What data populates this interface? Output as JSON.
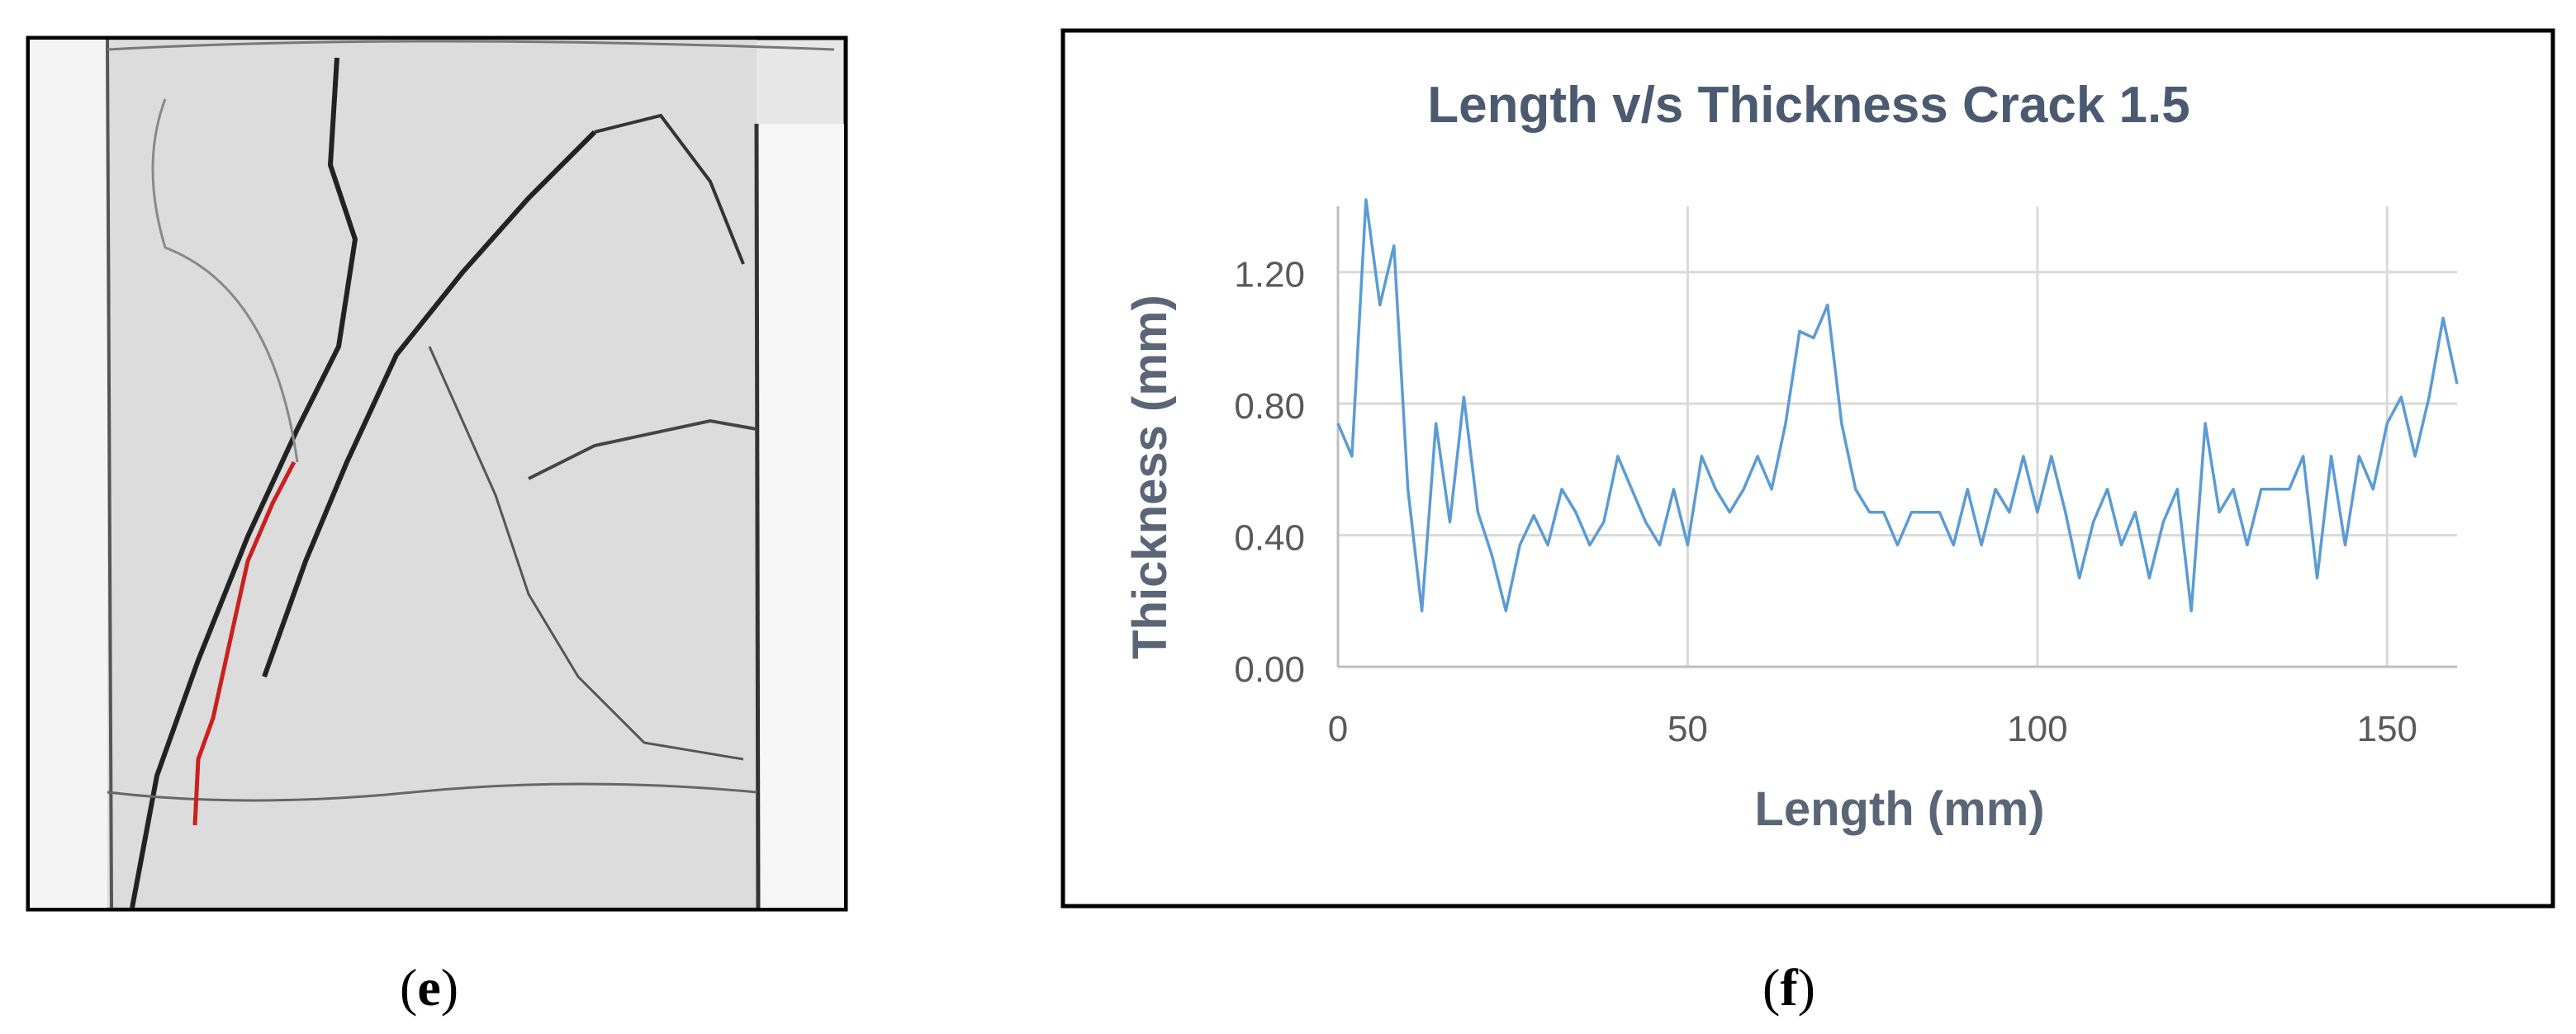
{
  "panels": {
    "left_caption_open": "(",
    "left_caption_letter": "e",
    "left_caption_close": ")",
    "right_caption_open": "(",
    "right_caption_letter": "f",
    "right_caption_close": ")"
  },
  "crack_image": {
    "description_icon": "crack-photo",
    "trace_color": "#cc1f1f"
  },
  "chart_data": {
    "type": "line",
    "title": "Length v/s Thickness Crack 1.5",
    "xlabel": "Length (mm)",
    "ylabel": "Thickness (mm)",
    "xlim": [
      0,
      160
    ],
    "ylim": [
      0,
      1.4
    ],
    "xticks": [
      0,
      50,
      100,
      150
    ],
    "xtick_labels": [
      "0",
      "50",
      "100",
      "150"
    ],
    "yticks": [
      0,
      0.4,
      0.8,
      1.2
    ],
    "ytick_labels": [
      "0.00",
      "0.40",
      "0.80",
      "1.20"
    ],
    "grid": true,
    "line_color": "#5b9bd5",
    "series": [
      {
        "x": [
          0,
          2,
          4,
          6,
          8,
          10,
          12,
          14,
          16,
          18,
          20,
          22,
          24,
          26,
          28,
          30,
          32,
          34,
          36,
          38,
          40,
          42,
          44,
          46,
          48,
          50,
          52,
          54,
          56,
          58,
          60,
          62,
          64,
          66,
          68,
          70,
          72,
          74,
          76,
          78,
          80,
          82,
          84,
          86,
          88,
          90,
          92,
          94,
          96,
          98,
          100,
          102,
          104,
          106,
          108,
          110,
          112,
          114,
          116,
          118,
          120,
          122,
          124,
          126,
          128,
          130,
          132,
          134,
          136,
          138,
          140,
          142,
          144,
          146,
          148,
          150,
          152,
          154,
          156,
          158,
          160
        ],
        "y": [
          0.74,
          0.64,
          1.42,
          1.1,
          1.28,
          0.54,
          0.17,
          0.74,
          0.44,
          0.82,
          0.47,
          0.34,
          0.17,
          0.37,
          0.46,
          0.37,
          0.54,
          0.47,
          0.37,
          0.44,
          0.64,
          0.54,
          0.44,
          0.37,
          0.54,
          0.37,
          0.64,
          0.54,
          0.47,
          0.54,
          0.64,
          0.54,
          0.74,
          1.02,
          1.0,
          1.1,
          0.74,
          0.54,
          0.47,
          0.47,
          0.37,
          0.47,
          0.47,
          0.47,
          0.37,
          0.54,
          0.37,
          0.54,
          0.47,
          0.64,
          0.47,
          0.64,
          0.47,
          0.27,
          0.44,
          0.54,
          0.37,
          0.47,
          0.27,
          0.44,
          0.54,
          0.17,
          0.74,
          0.47,
          0.54,
          0.37,
          0.54,
          0.54,
          0.54,
          0.64,
          0.27,
          0.64,
          0.37,
          0.64,
          0.54,
          0.74,
          0.82,
          0.64,
          0.82,
          1.06,
          0.86
        ]
      }
    ]
  }
}
